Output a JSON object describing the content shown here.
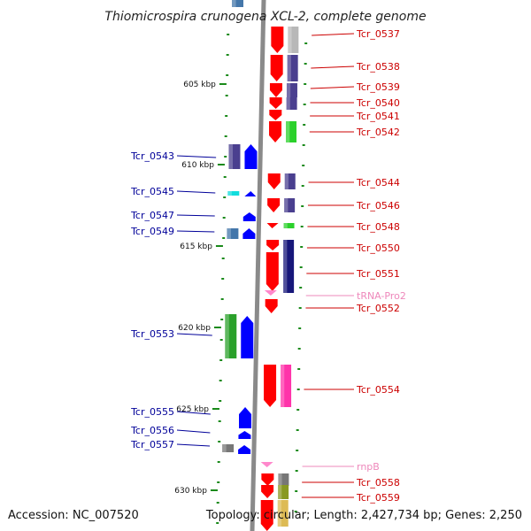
{
  "title": "Thiomicrospira crunogena XCL-2, complete genome",
  "accession": "Accession: NC_007520",
  "topology": "Topology: circular; Length: 2,427,734 bp; Genes: 2,250",
  "colors": {
    "right_label": "#cc0000",
    "left_label": "#000099",
    "rna_label": "#ee88bb",
    "backbone": "#8a8a8a",
    "tick": "#1a8a1a"
  },
  "ticks": [
    {
      "kbp": 605,
      "label": "605 kbp"
    },
    {
      "kbp": 610,
      "label": "610 kbp"
    },
    {
      "kbp": 615,
      "label": "615 kbp"
    },
    {
      "kbp": 620,
      "label": "620 kbp"
    },
    {
      "kbp": 625,
      "label": "625 kbp"
    },
    {
      "kbp": 630,
      "label": "630 kbp"
    }
  ],
  "right_labels": [
    {
      "text": "Tcr_0537",
      "type": "gene"
    },
    {
      "text": "Tcr_0538",
      "type": "gene"
    },
    {
      "text": "Tcr_0539",
      "type": "gene"
    },
    {
      "text": "Tcr_0540",
      "type": "gene"
    },
    {
      "text": "Tcr_0541",
      "type": "gene"
    },
    {
      "text": "Tcr_0542",
      "type": "gene"
    },
    {
      "text": "Tcr_0544",
      "type": "gene"
    },
    {
      "text": "Tcr_0546",
      "type": "gene"
    },
    {
      "text": "Tcr_0548",
      "type": "gene"
    },
    {
      "text": "Tcr_0550",
      "type": "gene"
    },
    {
      "text": "Tcr_0551",
      "type": "gene"
    },
    {
      "text": "tRNA-Pro2",
      "type": "rna"
    },
    {
      "text": "Tcr_0552",
      "type": "gene"
    },
    {
      "text": "Tcr_0554",
      "type": "gene"
    },
    {
      "text": "rnpB",
      "type": "rna"
    },
    {
      "text": "Tcr_0558",
      "type": "gene"
    },
    {
      "text": "Tcr_0559",
      "type": "gene"
    }
  ],
  "left_labels": [
    {
      "text": "Tcr_0543"
    },
    {
      "text": "Tcr_0545"
    },
    {
      "text": "Tcr_0547"
    },
    {
      "text": "Tcr_0549"
    },
    {
      "text": "Tcr_0553"
    },
    {
      "text": "Tcr_0555"
    },
    {
      "text": "Tcr_0556"
    },
    {
      "text": "Tcr_0557"
    }
  ]
}
